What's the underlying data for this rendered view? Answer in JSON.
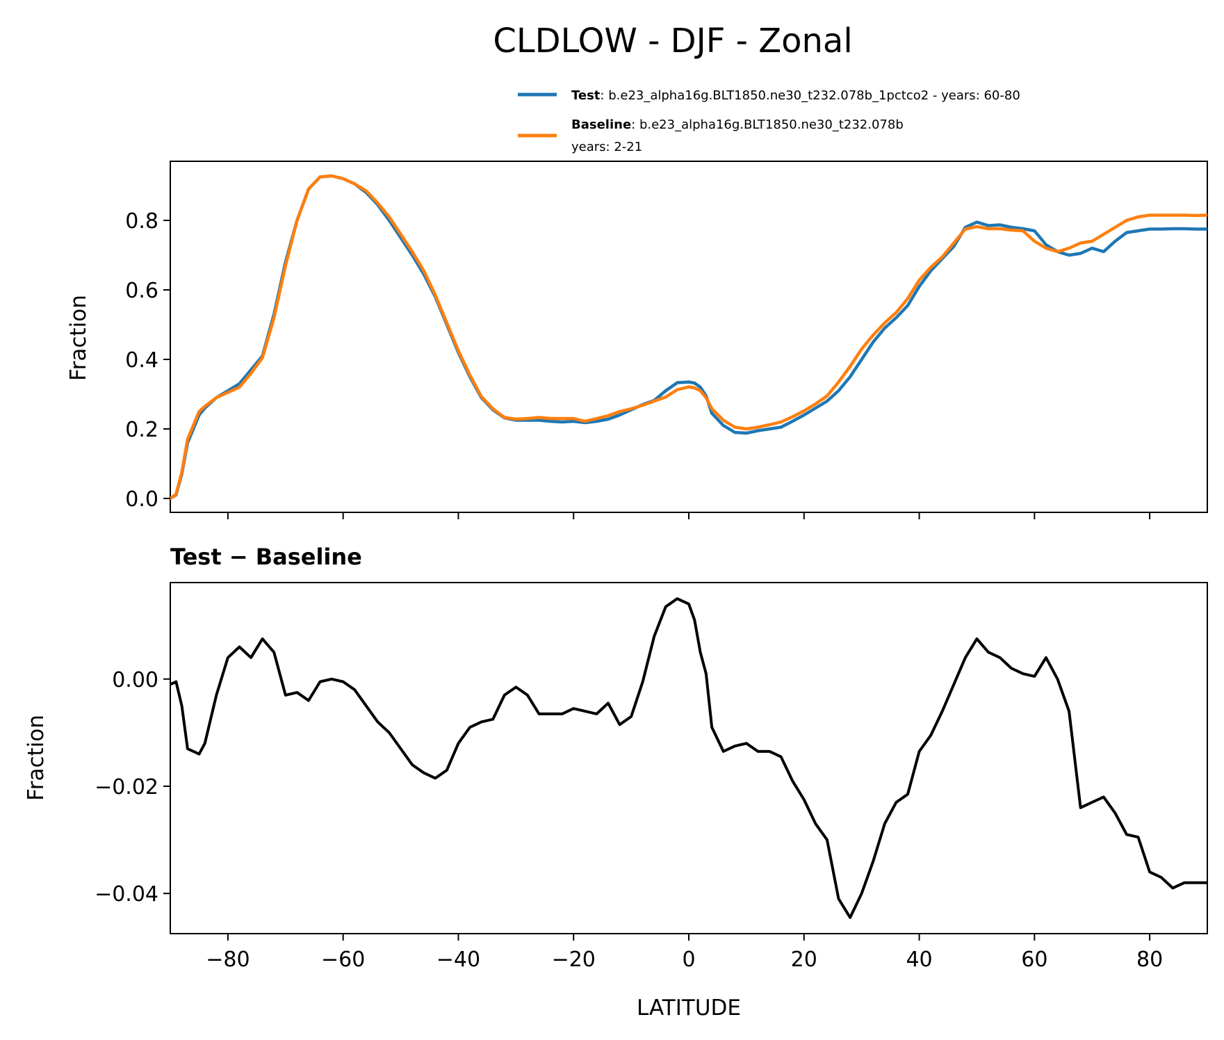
{
  "chart_data": [
    {
      "type": "line",
      "title": "CLDLOW - DJF - Zonal",
      "ylabel": "Fraction",
      "xlim": [
        -90,
        90
      ],
      "ylim": [
        -0.04,
        0.97
      ],
      "xticks": [
        -80,
        -60,
        -40,
        -20,
        0,
        20,
        40,
        60,
        80
      ],
      "yticks": [
        0.0,
        0.2,
        0.4,
        0.6,
        0.8
      ],
      "ytick_labels": [
        "0.0",
        "0.2",
        "0.4",
        "0.6",
        "0.8"
      ],
      "colors": {
        "test": "#1f77b4",
        "baseline": "#ff7f0e"
      },
      "legend": [
        {
          "key": "test",
          "name": "Test",
          "sep": ": ",
          "description": "b.e23_alpha16g.BLT1850.ne30_t232.078b_1pctco2 - years: 60-80"
        },
        {
          "key": "baseline",
          "name": "Baseline",
          "sep": ": ",
          "description": "b.e23_alpha16g.BLT1850.ne30_t232.078b",
          "description2": "years: 2-21"
        }
      ],
      "x": [
        -90,
        -89,
        -88,
        -87,
        -86,
        -85,
        -84,
        -82,
        -80,
        -78,
        -76,
        -74,
        -72,
        -70,
        -68,
        -66,
        -64,
        -62,
        -60,
        -58,
        -56,
        -54,
        -52,
        -50,
        -48,
        -46,
        -44,
        -42,
        -40,
        -38,
        -36,
        -34,
        -32,
        -30,
        -28,
        -26,
        -24,
        -22,
        -20,
        -18,
        -16,
        -14,
        -12,
        -10,
        -8,
        -6,
        -4,
        -2,
        0,
        1,
        2,
        3,
        4,
        6,
        8,
        10,
        12,
        14,
        16,
        18,
        20,
        22,
        24,
        26,
        28,
        30,
        32,
        34,
        36,
        38,
        40,
        42,
        44,
        46,
        48,
        50,
        52,
        54,
        56,
        58,
        60,
        62,
        64,
        66,
        68,
        70,
        72,
        74,
        76,
        78,
        80,
        82,
        84,
        86,
        88,
        90
      ],
      "series": [
        {
          "name": "Test",
          "values": [
            0.0,
            0.01,
            0.07,
            0.16,
            0.2,
            0.24,
            0.26,
            0.29,
            0.31,
            0.33,
            0.37,
            0.41,
            0.53,
            0.68,
            0.8,
            0.89,
            0.925,
            0.928,
            0.92,
            0.905,
            0.88,
            0.845,
            0.8,
            0.75,
            0.7,
            0.645,
            0.58,
            0.5,
            0.42,
            0.35,
            0.29,
            0.255,
            0.232,
            0.225,
            0.225,
            0.225,
            0.222,
            0.22,
            0.222,
            0.218,
            0.222,
            0.228,
            0.24,
            0.255,
            0.27,
            0.282,
            0.31,
            0.333,
            0.335,
            0.332,
            0.32,
            0.295,
            0.245,
            0.21,
            0.19,
            0.188,
            0.195,
            0.2,
            0.205,
            0.222,
            0.24,
            0.26,
            0.28,
            0.31,
            0.35,
            0.4,
            0.45,
            0.49,
            0.52,
            0.555,
            0.61,
            0.655,
            0.69,
            0.725,
            0.78,
            0.795,
            0.785,
            0.787,
            0.78,
            0.776,
            0.77,
            0.73,
            0.71,
            0.7,
            0.705,
            0.72,
            0.71,
            0.74,
            0.765,
            0.77,
            0.775,
            0.775,
            0.776,
            0.776,
            0.775,
            0.775
          ]
        },
        {
          "name": "Baseline",
          "values": [
            0.0,
            0.012,
            0.075,
            0.17,
            0.21,
            0.25,
            0.265,
            0.29,
            0.305,
            0.32,
            0.36,
            0.405,
            0.52,
            0.67,
            0.8,
            0.89,
            0.925,
            0.928,
            0.92,
            0.905,
            0.885,
            0.85,
            0.81,
            0.76,
            0.71,
            0.655,
            0.585,
            0.505,
            0.425,
            0.355,
            0.293,
            0.258,
            0.233,
            0.228,
            0.23,
            0.233,
            0.23,
            0.23,
            0.23,
            0.222,
            0.23,
            0.238,
            0.25,
            0.258,
            0.268,
            0.28,
            0.292,
            0.313,
            0.321,
            0.318,
            0.31,
            0.29,
            0.258,
            0.225,
            0.205,
            0.2,
            0.205,
            0.212,
            0.22,
            0.235,
            0.252,
            0.272,
            0.295,
            0.335,
            0.38,
            0.43,
            0.47,
            0.505,
            0.535,
            0.575,
            0.628,
            0.665,
            0.695,
            0.735,
            0.775,
            0.782,
            0.776,
            0.776,
            0.772,
            0.77,
            0.74,
            0.72,
            0.71,
            0.72,
            0.735,
            0.74,
            0.76,
            0.78,
            0.8,
            0.81,
            0.815,
            0.815,
            0.815,
            0.815,
            0.814,
            0.815
          ]
        }
      ]
    },
    {
      "type": "line",
      "title": "Test − Baseline",
      "ylabel": "Fraction",
      "xlabel": "LATITUDE",
      "xlim": [
        -90,
        90
      ],
      "ylim": [
        -0.0475,
        0.018
      ],
      "xticks": [
        -80,
        -60,
        -40,
        -20,
        0,
        20,
        40,
        60,
        80
      ],
      "xtick_labels": [
        "−80",
        "−60",
        "−40",
        "−20",
        "0",
        "20",
        "40",
        "60",
        "80"
      ],
      "yticks": [
        0.0,
        -0.02,
        -0.04
      ],
      "ytick_labels": [
        "0.00",
        "−0.02",
        "−0.04"
      ],
      "color": "#000000",
      "x": [
        -90,
        -89,
        -88,
        -87,
        -86,
        -85,
        -84,
        -82,
        -80,
        -78,
        -76,
        -74,
        -72,
        -70,
        -68,
        -66,
        -64,
        -62,
        -60,
        -58,
        -56,
        -54,
        -52,
        -50,
        -48,
        -46,
        -44,
        -42,
        -40,
        -38,
        -36,
        -34,
        -32,
        -30,
        -28,
        -26,
        -24,
        -22,
        -20,
        -18,
        -16,
        -14,
        -12,
        -10,
        -8,
        -6,
        -4,
        -2,
        0,
        1,
        2,
        3,
        4,
        6,
        8,
        10,
        12,
        14,
        16,
        18,
        20,
        22,
        24,
        26,
        28,
        30,
        32,
        34,
        36,
        38,
        40,
        42,
        44,
        46,
        48,
        50,
        52,
        54,
        56,
        58,
        60,
        62,
        64,
        66,
        68,
        70,
        72,
        74,
        76,
        78,
        80,
        82,
        84,
        86,
        88,
        90
      ],
      "values": [
        -0.001,
        -0.0005,
        -0.005,
        -0.013,
        -0.0135,
        -0.014,
        -0.012,
        -0.003,
        0.004,
        0.006,
        0.004,
        0.0075,
        0.005,
        -0.003,
        -0.0025,
        -0.004,
        -0.0005,
        0.0,
        -0.0005,
        -0.002,
        -0.005,
        -0.008,
        -0.01,
        -0.013,
        -0.016,
        -0.0175,
        -0.0185,
        -0.017,
        -0.012,
        -0.009,
        -0.008,
        -0.0075,
        -0.003,
        -0.0015,
        -0.003,
        -0.0065,
        -0.0065,
        -0.0065,
        -0.0055,
        -0.006,
        -0.0065,
        -0.0045,
        -0.0085,
        -0.007,
        -0.0005,
        0.008,
        0.0135,
        0.015,
        0.014,
        0.011,
        0.005,
        0.001,
        -0.009,
        -0.0135,
        -0.0125,
        -0.012,
        -0.0135,
        -0.0135,
        -0.0145,
        -0.019,
        -0.0225,
        -0.027,
        -0.03,
        -0.041,
        -0.0445,
        -0.04,
        -0.034,
        -0.027,
        -0.023,
        -0.0215,
        -0.0135,
        -0.0105,
        -0.006,
        -0.001,
        0.004,
        0.0075,
        0.005,
        0.004,
        0.002,
        0.001,
        0.0005,
        0.004,
        0.0,
        -0.006,
        -0.024,
        -0.023,
        -0.022,
        -0.025,
        -0.029,
        -0.0295,
        -0.036,
        -0.037,
        -0.039,
        -0.038,
        -0.038,
        -0.038
      ]
    }
  ]
}
